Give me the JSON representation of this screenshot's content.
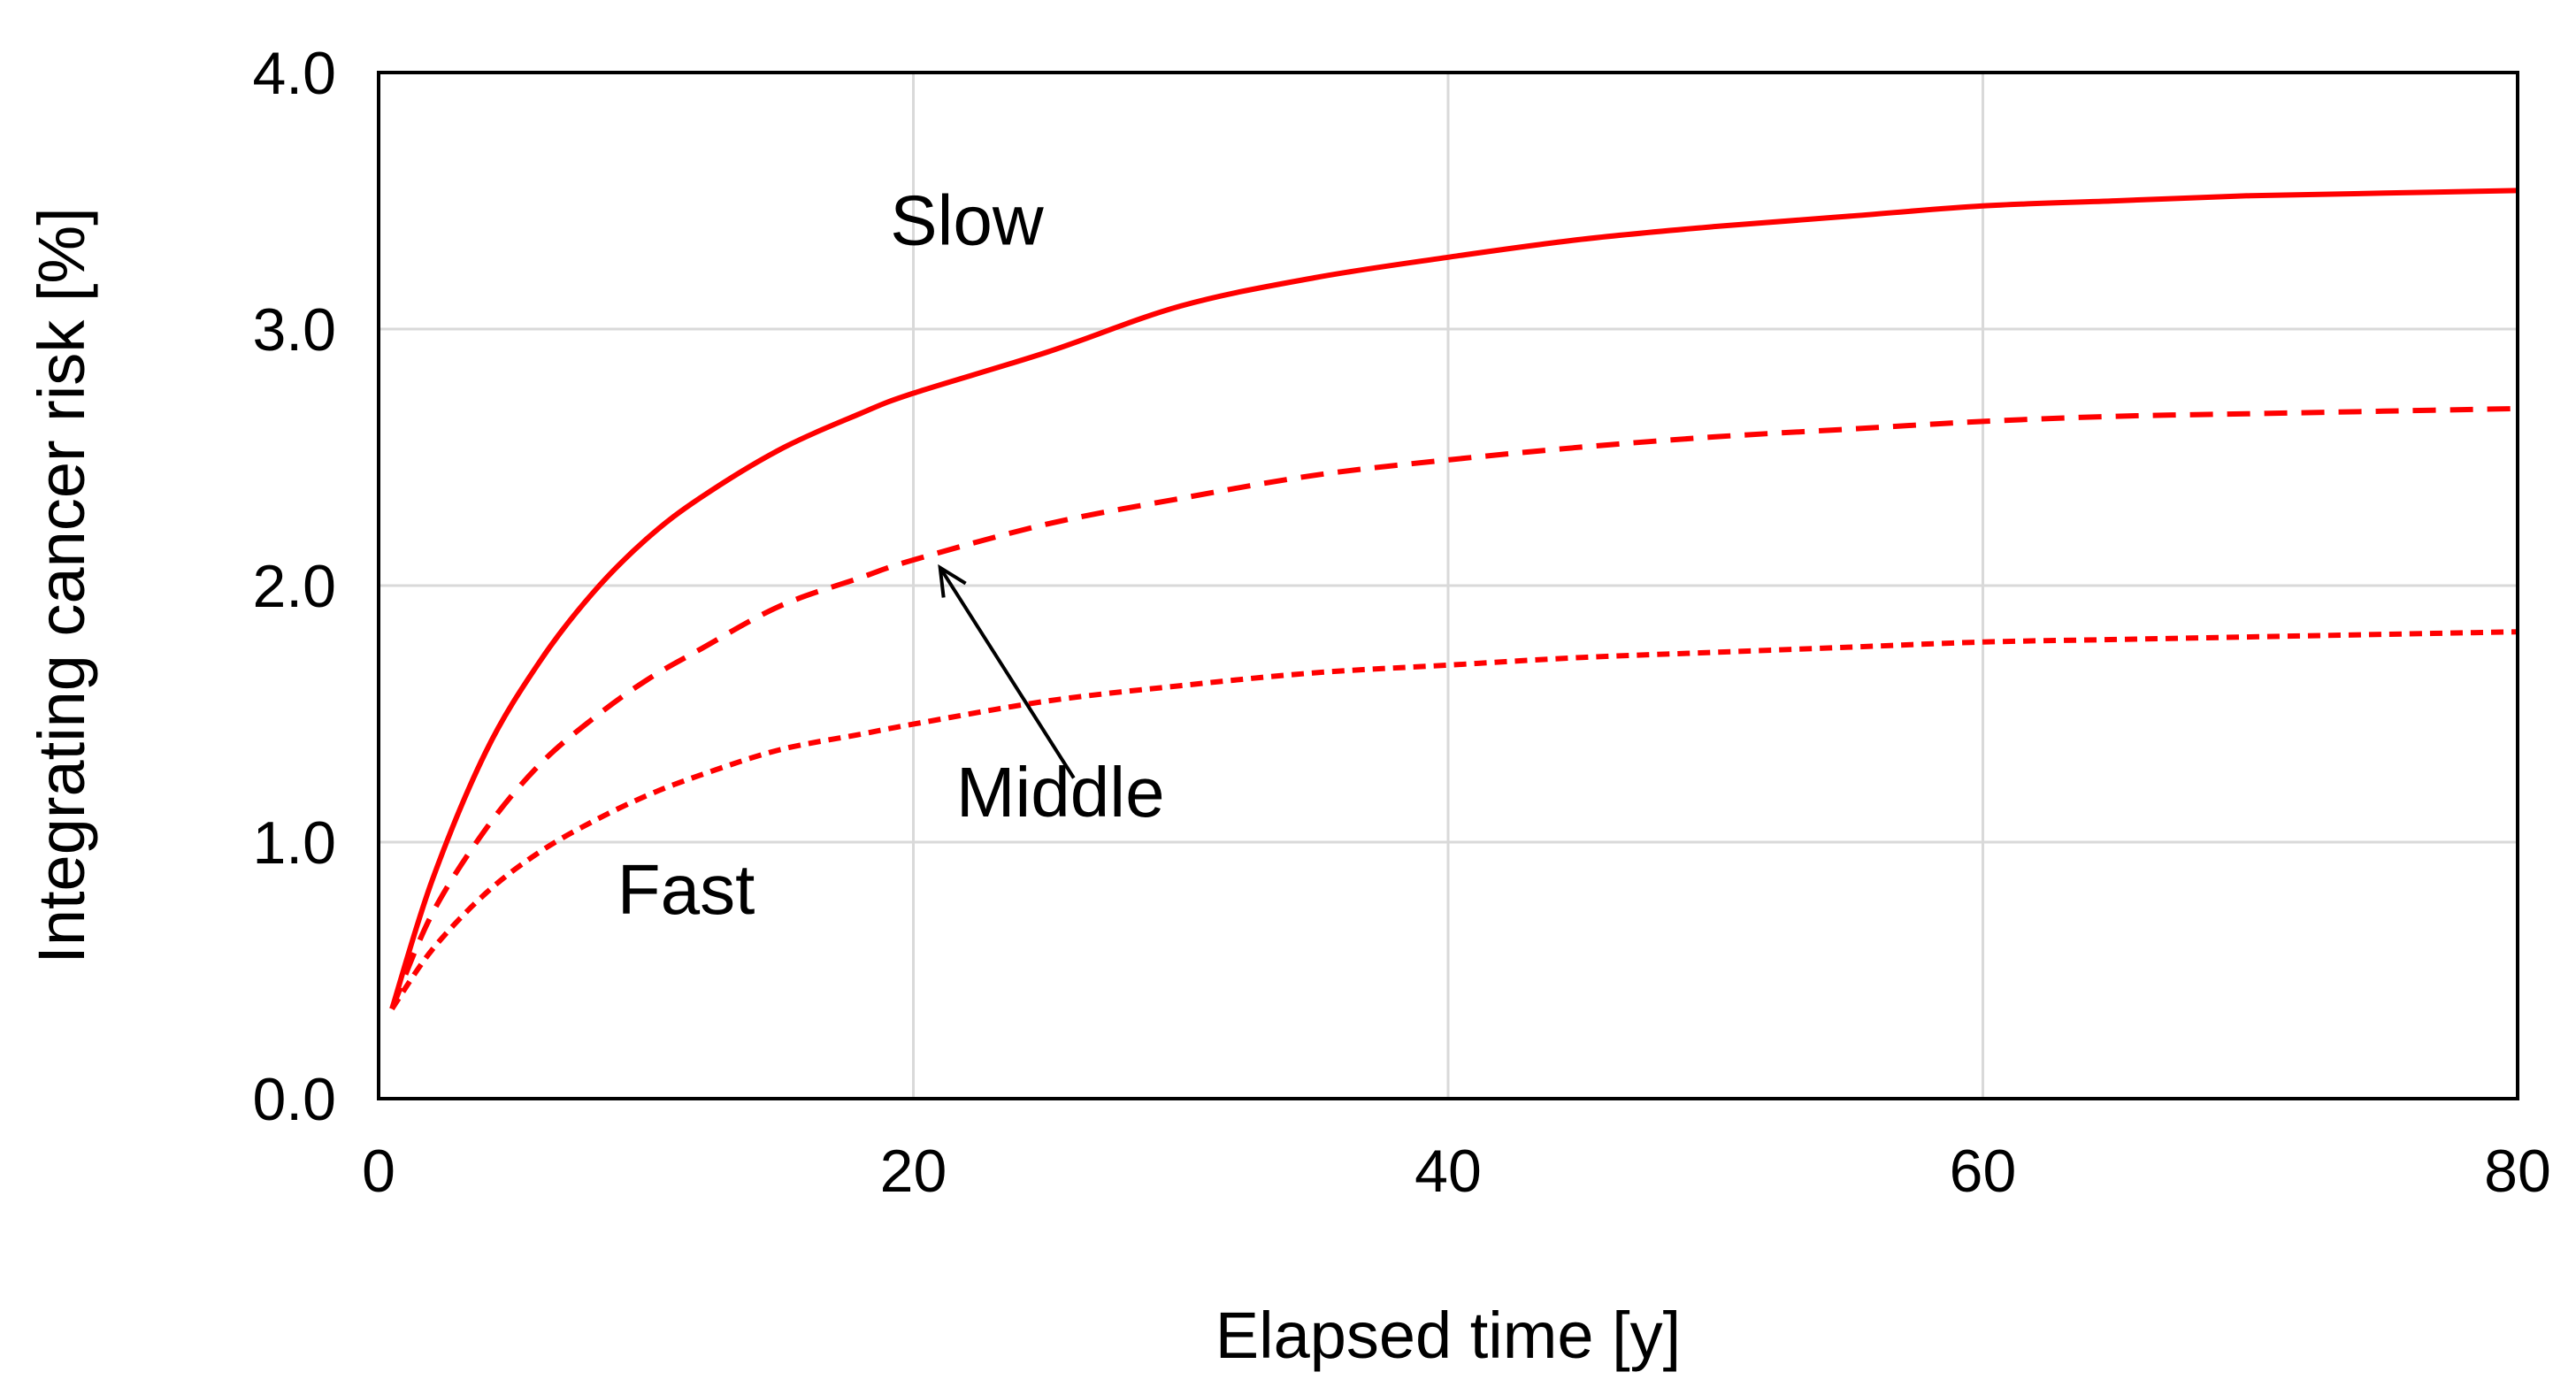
{
  "chart_data": {
    "type": "line",
    "title": "",
    "xlabel": "Elapsed time [y]",
    "ylabel": "Integrating cancer risk [%]",
    "xlim": [
      0,
      80
    ],
    "ylim": [
      0,
      4.0
    ],
    "xticks": [
      0,
      20,
      40,
      60,
      80
    ],
    "xtick_labels": [
      "0",
      "20",
      "40",
      "60",
      "80"
    ],
    "yticks": [
      0,
      1,
      2,
      3,
      4
    ],
    "ytick_labels": [
      "0.0",
      "1.0",
      "2.0",
      "3.0",
      "4.0"
    ],
    "grid": true,
    "line_color": "#ff0000",
    "x": [
      0.5,
      2,
      4,
      6,
      8,
      10,
      12,
      15,
      18,
      20,
      25,
      30,
      35,
      40,
      45,
      50,
      55,
      60,
      65,
      70,
      75,
      80
    ],
    "series": [
      {
        "name": "Slow",
        "style": "solid",
        "values": [
          0.35,
          0.85,
          1.35,
          1.7,
          1.97,
          2.18,
          2.34,
          2.53,
          2.67,
          2.75,
          2.91,
          3.09,
          3.2,
          3.28,
          3.35,
          3.4,
          3.44,
          3.48,
          3.5,
          3.52,
          3.53,
          3.54
        ]
      },
      {
        "name": "Middle",
        "style": "dashed",
        "values": [
          0.35,
          0.72,
          1.05,
          1.3,
          1.48,
          1.63,
          1.75,
          1.92,
          2.03,
          2.1,
          2.24,
          2.34,
          2.43,
          2.49,
          2.54,
          2.58,
          2.61,
          2.64,
          2.66,
          2.67,
          2.68,
          2.69
        ]
      },
      {
        "name": "Fast",
        "style": "dotted",
        "values": [
          0.35,
          0.58,
          0.8,
          0.96,
          1.08,
          1.18,
          1.26,
          1.36,
          1.42,
          1.46,
          1.55,
          1.61,
          1.66,
          1.69,
          1.72,
          1.74,
          1.76,
          1.78,
          1.79,
          1.8,
          1.81,
          1.82
        ]
      }
    ],
    "annotations": [
      {
        "text": "Slow",
        "x": 22,
        "y": 3.33
      },
      {
        "text": "Middle",
        "x": 25.5,
        "y": 1.1
      },
      {
        "text": "Fast",
        "x": 11.5,
        "y": 0.72
      }
    ],
    "arrow": {
      "from": [
        26,
        1.25
      ],
      "to": [
        21,
        2.07
      ]
    }
  }
}
